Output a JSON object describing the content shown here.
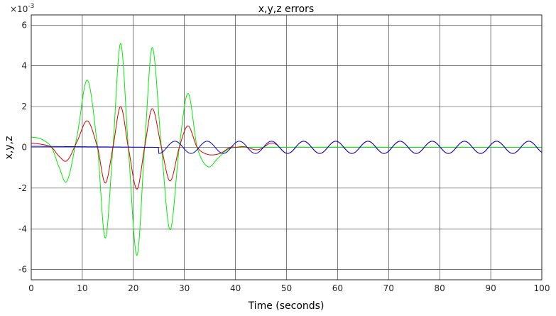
{
  "chart_data": {
    "type": "line",
    "title": "x,y,z errors",
    "xlabel": "Time (seconds)",
    "ylabel": "x,y,z",
    "y_exponent_label": "×10",
    "y_exponent": "-3",
    "xlim": [
      0,
      100
    ],
    "ylim": [
      -6.5,
      6.5
    ],
    "x_ticks": [
      0,
      10,
      20,
      30,
      40,
      50,
      60,
      70,
      80,
      90,
      100
    ],
    "y_ticks": [
      -6,
      -4,
      -2,
      0,
      2,
      4,
      6
    ],
    "y_units_scale": 0.001,
    "grid": true,
    "legend": "none",
    "series": [
      {
        "color": "#00ee00",
        "x": [
          0,
          2,
          4,
          5.5,
          7,
          9,
          11,
          13,
          14.5,
          16,
          17.5,
          19,
          20.7,
          22.2,
          23.7,
          25.5,
          27.2,
          29,
          30.7,
          32.5,
          34.6,
          36.5,
          38.5,
          40,
          100
        ],
        "y": [
          0.5,
          0.4,
          0.0,
          -1.0,
          -1.65,
          0.6,
          3.3,
          0.0,
          -4.45,
          0.0,
          5.1,
          0.0,
          -5.3,
          0.0,
          4.9,
          0.0,
          -4.05,
          0.0,
          2.65,
          0.0,
          -0.95,
          -0.55,
          -0.1,
          0.0,
          0.0
        ]
      },
      {
        "color": "#dd0000",
        "x": [
          0,
          2,
          4,
          5.5,
          7,
          9,
          11,
          13,
          14.5,
          16,
          17.5,
          19,
          20.7,
          22.2,
          23.7,
          25.5,
          27.2,
          29,
          30.7,
          32.5,
          34.6,
          37,
          39,
          40,
          100
        ],
        "y": [
          0.2,
          0.15,
          0.0,
          -0.45,
          -0.65,
          0.3,
          1.3,
          0.0,
          -1.75,
          0.0,
          2.0,
          0.0,
          -2.05,
          0.0,
          1.9,
          0.0,
          -1.65,
          0.0,
          1.05,
          0.0,
          -0.35,
          -0.3,
          0.0,
          0.0,
          0.0
        ]
      },
      {
        "color": "#0000dd",
        "x": [
          0,
          24.8,
          25.2,
          100
        ],
        "y": [
          0.05,
          0.0,
          -0.25,
          0.0
        ]
      }
    ],
    "steady_oscillation": {
      "start": 25,
      "amplitude": 0.3,
      "period": 6.3,
      "red_joins_at": 50
    }
  }
}
